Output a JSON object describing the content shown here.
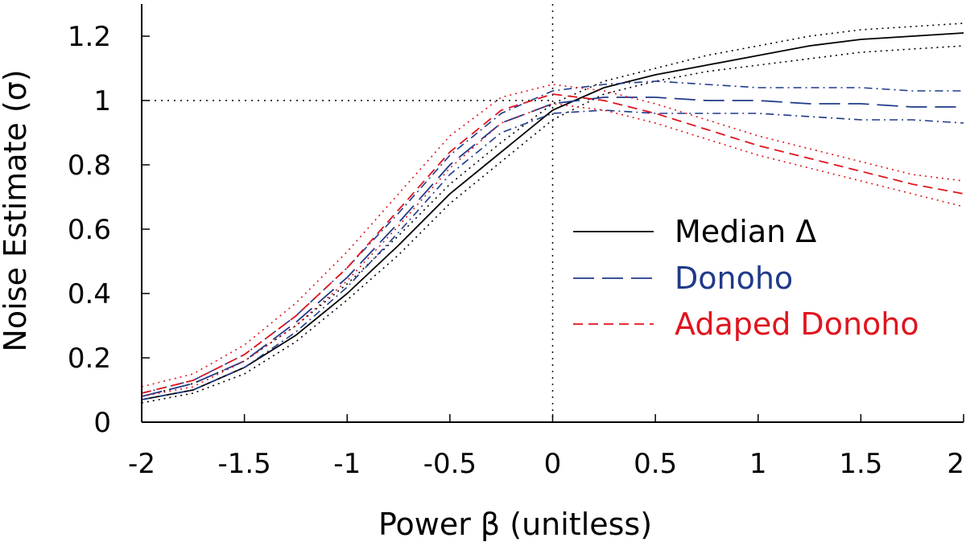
{
  "chart_data": {
    "type": "line",
    "xlabel": "Power β (unitless)",
    "ylabel": "Noise Estimate (σ)",
    "xlim": [
      -2,
      2
    ],
    "ylim": [
      0,
      1.3
    ],
    "xticks": [
      -2,
      -1.5,
      -1,
      -0.5,
      0,
      0.5,
      1,
      1.5,
      2
    ],
    "xtick_labels": [
      "-2",
      "-1.5",
      "-1",
      "-0.5",
      "0",
      "0.5",
      "1",
      "1.5",
      "2"
    ],
    "yticks": [
      0,
      0.2,
      0.4,
      0.6,
      0.8,
      1,
      1.2
    ],
    "ytick_labels": [
      "0",
      "0.2",
      "0.4",
      "0.6",
      "0.8",
      "1",
      "1.2"
    ],
    "reference_lines": {
      "x": 0,
      "y": 1
    },
    "grid": false,
    "legend_position": "right",
    "x": [
      -2.0,
      -1.75,
      -1.5,
      -1.25,
      -1.0,
      -0.75,
      -0.5,
      -0.25,
      0.0,
      0.25,
      0.5,
      0.75,
      1.0,
      1.25,
      1.5,
      1.75,
      2.0
    ],
    "series": [
      {
        "name": "Median Δ",
        "color": "#000000",
        "dash": "solid",
        "band_dash": "dotted",
        "median": [
          0.07,
          0.1,
          0.17,
          0.27,
          0.4,
          0.55,
          0.71,
          0.84,
          0.97,
          1.04,
          1.08,
          1.11,
          1.14,
          1.17,
          1.19,
          1.2,
          1.21
        ],
        "upper": [
          0.08,
          0.12,
          0.19,
          0.3,
          0.43,
          0.58,
          0.74,
          0.87,
          0.99,
          1.06,
          1.1,
          1.14,
          1.17,
          1.2,
          1.22,
          1.23,
          1.24
        ],
        "lower": [
          0.06,
          0.09,
          0.15,
          0.25,
          0.38,
          0.52,
          0.68,
          0.81,
          0.94,
          1.02,
          1.06,
          1.09,
          1.11,
          1.13,
          1.15,
          1.16,
          1.17
        ]
      },
      {
        "name": "Donoho",
        "color": "#1f3a8a",
        "dash": "longdash",
        "band_dash": "dashdot",
        "median": [
          0.08,
          0.12,
          0.19,
          0.31,
          0.45,
          0.62,
          0.8,
          0.93,
          0.99,
          1.01,
          1.01,
          1.0,
          1.0,
          0.99,
          0.99,
          0.98,
          0.98
        ],
        "upper": [
          0.09,
          0.13,
          0.21,
          0.33,
          0.48,
          0.65,
          0.83,
          0.96,
          1.03,
          1.05,
          1.06,
          1.05,
          1.04,
          1.04,
          1.04,
          1.03,
          1.03
        ],
        "lower": [
          0.07,
          0.1,
          0.17,
          0.28,
          0.42,
          0.59,
          0.77,
          0.9,
          0.96,
          0.97,
          0.96,
          0.96,
          0.96,
          0.95,
          0.94,
          0.94,
          0.93
        ]
      },
      {
        "name": "Adaped Donoho",
        "color": "#e0141e",
        "dash": "dashed",
        "band_dash": "dotted",
        "median": [
          0.09,
          0.13,
          0.21,
          0.33,
          0.48,
          0.66,
          0.84,
          0.97,
          1.02,
          1.0,
          0.96,
          0.91,
          0.86,
          0.82,
          0.78,
          0.74,
          0.71
        ],
        "upper": [
          0.11,
          0.15,
          0.24,
          0.37,
          0.53,
          0.71,
          0.89,
          1.01,
          1.05,
          1.03,
          0.99,
          0.94,
          0.89,
          0.85,
          0.81,
          0.77,
          0.75
        ],
        "lower": [
          0.08,
          0.11,
          0.19,
          0.3,
          0.44,
          0.61,
          0.79,
          0.93,
          0.99,
          0.97,
          0.93,
          0.88,
          0.83,
          0.79,
          0.75,
          0.71,
          0.67
        ]
      }
    ]
  }
}
